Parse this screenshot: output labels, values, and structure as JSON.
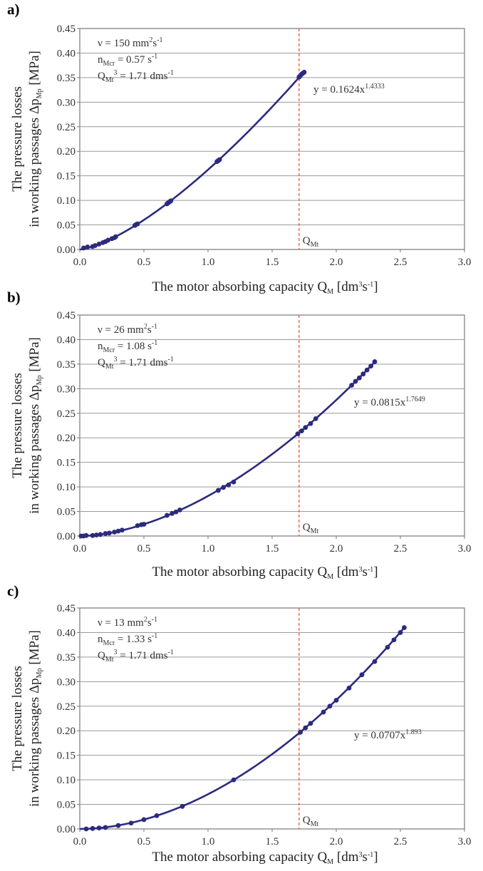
{
  "colors": {
    "series": "#2b2b7e",
    "reference_line": "#e8582e",
    "grid": "#9a9a9a",
    "frame": "#777777"
  },
  "chart_data": [
    {
      "type": "scatter",
      "panel_label": "a)",
      "xlabel": {
        "main": "The motor absorbing capacity Q",
        "sub": "M",
        "units_pre": " [dm",
        "units_sup1": "3",
        "units_mid": "s",
        "units_sup2": "-1",
        "units_post": "]"
      },
      "ylabel": {
        "line1": "The pressure losses",
        "line2_pre": "in working passages Δp",
        "line2_sub": "Mp",
        "line2_post": " [MPa]"
      },
      "xlim": [
        0.0,
        3.0
      ],
      "ylim": [
        0.0,
        0.45
      ],
      "x_ticks": [
        "0.0",
        "0.5",
        "1.0",
        "1.5",
        "2.0",
        "2.5",
        "3.0"
      ],
      "y_ticks": [
        "0.00",
        "0.05",
        "0.10",
        "0.15",
        "0.20",
        "0.25",
        "0.30",
        "0.35",
        "0.40",
        "0.45"
      ],
      "grid": "horizontal",
      "params": [
        {
          "pre": "ν = 150 mm",
          "sup1": "2",
          "mid": "s",
          "sup2": "-1"
        },
        {
          "pre": "n",
          "sub": "Mcr",
          "mid": " = 0.57 s",
          "sup2": "-1"
        },
        {
          "pre": "Q",
          "sub": "Mt",
          "mid": " = 1.71 dm",
          "sup1": "3",
          "tail": "s",
          "sup2": "-1"
        }
      ],
      "fit": {
        "text_pre": "y = 0.1624x",
        "text_sup": "1.4333",
        "coef": 0.1624,
        "exp": 1.4333,
        "x_range": [
          0.0,
          1.74
        ]
      },
      "qmt_line": {
        "x": 1.71,
        "label": "Q",
        "label_sub": "Mt"
      },
      "series": [
        {
          "name": "",
          "x": [
            0.03,
            0.06,
            0.1,
            0.12,
            0.15,
            0.18,
            0.2,
            0.22,
            0.25,
            0.27,
            0.28,
            0.43,
            0.44,
            0.45,
            0.68,
            0.69,
            0.7,
            0.71,
            1.07,
            1.08,
            1.09,
            1.71,
            1.72,
            1.73,
            1.74,
            1.75
          ],
          "y": [
            0.003,
            0.005,
            0.006,
            0.008,
            0.011,
            0.014,
            0.016,
            0.019,
            0.022,
            0.024,
            0.026,
            0.049,
            0.051,
            0.052,
            0.093,
            0.095,
            0.097,
            0.099,
            0.179,
            0.181,
            0.183,
            0.351,
            0.354,
            0.357,
            0.359,
            0.361
          ]
        }
      ]
    },
    {
      "type": "scatter",
      "panel_label": "b)",
      "xlabel": {
        "main": "The motor absorbing capacity Q",
        "sub": "M",
        "units_pre": " [dm",
        "units_sup1": "3",
        "units_mid": "s",
        "units_sup2": "-1",
        "units_post": "]"
      },
      "ylabel": {
        "line1": "The pressure losses",
        "line2_pre": "in working passages Δp",
        "line2_sub": "Mp",
        "line2_post": " [MPa]"
      },
      "xlim": [
        0.0,
        3.0
      ],
      "ylim": [
        0.0,
        0.45
      ],
      "x_ticks": [
        "0.0",
        "0.5",
        "1.0",
        "1.5",
        "2.0",
        "2.5",
        "3.0"
      ],
      "y_ticks": [
        "0.00",
        "0.05",
        "0.10",
        "0.15",
        "0.20",
        "0.25",
        "0.30",
        "0.35",
        "0.40",
        "0.45"
      ],
      "grid": "horizontal",
      "params": [
        {
          "pre": "ν = 26 mm",
          "sup1": "2",
          "mid": "s",
          "sup2": "-1"
        },
        {
          "pre": "n",
          "sub": "Mcr",
          "mid": " = 1.08 s",
          "sup2": "-1"
        },
        {
          "pre": "Q",
          "sub": "Mt",
          "mid": " = 1.71 dm",
          "sup1": "3",
          "tail": "s",
          "sup2": "-1"
        }
      ],
      "fit": {
        "text_pre": "y = 0.0815x",
        "text_sup": "1.7649",
        "coef": 0.0815,
        "exp": 1.7649,
        "x_range": [
          0.0,
          2.3
        ]
      },
      "qmt_line": {
        "x": 1.71,
        "label": "Q",
        "label_sub": "Mt"
      },
      "series": [
        {
          "name": "",
          "x": [
            0.01,
            0.03,
            0.05,
            0.1,
            0.13,
            0.16,
            0.2,
            0.23,
            0.27,
            0.3,
            0.33,
            0.45,
            0.48,
            0.5,
            0.68,
            0.72,
            0.75,
            0.78,
            1.08,
            1.12,
            1.16,
            1.2,
            1.7,
            1.73,
            1.76,
            1.8,
            1.84,
            2.12,
            2.15,
            2.18,
            2.21,
            2.24,
            2.27,
            2.3
          ],
          "y": [
            0.0,
            0.0,
            0.001,
            0.001,
            0.002,
            0.003,
            0.005,
            0.006,
            0.008,
            0.01,
            0.012,
            0.021,
            0.023,
            0.024,
            0.042,
            0.046,
            0.049,
            0.053,
            0.093,
            0.099,
            0.104,
            0.11,
            0.208,
            0.214,
            0.221,
            0.229,
            0.239,
            0.307,
            0.315,
            0.322,
            0.33,
            0.338,
            0.346,
            0.355
          ]
        }
      ]
    },
    {
      "type": "scatter",
      "panel_label": "c)",
      "xlabel": {
        "main": "The motor absorbing capacity Q",
        "sub": "M",
        "units_pre": " [dm",
        "units_sup1": "3",
        "units_mid": "s",
        "units_sup2": "-1",
        "units_post": "]"
      },
      "ylabel": {
        "line1": "The pressure losses",
        "line2_pre": "in working passages Δp",
        "line2_sub": "Mp",
        "line2_post": " [MPa]"
      },
      "xlim": [
        0.0,
        3.0
      ],
      "ylim": [
        0.0,
        0.45
      ],
      "x_ticks": [
        "0.0",
        "0.5",
        "1.0",
        "1.5",
        "2.0",
        "2.5",
        "3.0"
      ],
      "y_ticks": [
        "0.00",
        "0.05",
        "0.10",
        "0.15",
        "0.20",
        "0.25",
        "0.30",
        "0.35",
        "0.40",
        "0.45"
      ],
      "grid": "horizontal",
      "params": [
        {
          "pre": "ν = 13 mm",
          "sup1": "2",
          "mid": "s",
          "sup2": "-1"
        },
        {
          "pre": "n",
          "sub": "Mcr",
          "mid": " = 1.33 s",
          "sup2": "-1"
        },
        {
          "pre": "Q",
          "sub": "Mt",
          "mid": " = 1.71 dm",
          "sup1": "3",
          "tail": "s",
          "sup2": "-1"
        }
      ],
      "fit": {
        "text_pre": "y = 0.0707x",
        "text_sup": "1.893",
        "coef": 0.0707,
        "exp": 1.893,
        "x_range": [
          0.0,
          2.53
        ]
      },
      "qmt_line": {
        "x": 1.71,
        "label": "Q",
        "label_sub": "Mt"
      },
      "series": [
        {
          "name": "",
          "x": [
            0.05,
            0.1,
            0.15,
            0.2,
            0.3,
            0.4,
            0.5,
            0.6,
            0.8,
            1.2,
            1.72,
            1.76,
            1.8,
            1.9,
            1.95,
            2.0,
            2.1,
            2.2,
            2.3,
            2.4,
            2.45,
            2.5,
            2.53
          ],
          "y": [
            0.0,
            0.001,
            0.002,
            0.003,
            0.007,
            0.012,
            0.019,
            0.027,
            0.046,
            0.1,
            0.197,
            0.206,
            0.215,
            0.238,
            0.25,
            0.262,
            0.287,
            0.314,
            0.341,
            0.37,
            0.385,
            0.4,
            0.41
          ]
        }
      ]
    }
  ]
}
